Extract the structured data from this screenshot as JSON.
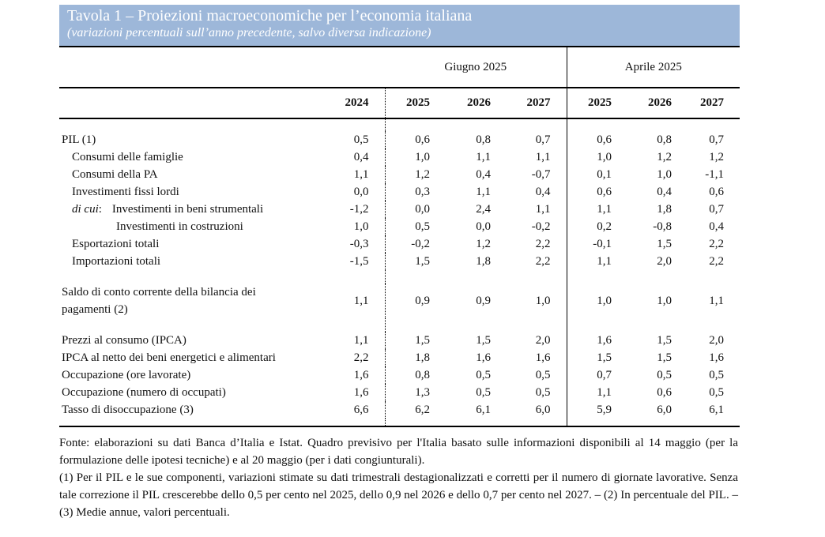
{
  "title": "Tavola 1 – Proiezioni macroeconomiche per l’economia italiana",
  "subtitle": "(variazioni percentuali sull’anno precedente, salvo diversa indicazione)",
  "groups": {
    "june": "Giugno 2025",
    "april": "Aprile 2025"
  },
  "years": [
    "2024",
    "2025",
    "2026",
    "2027",
    "2025",
    "2026",
    "2027"
  ],
  "rows": [
    {
      "label": "PIL (1)",
      "values": [
        "0,5",
        "0,6",
        "0,8",
        "0,7",
        "0,6",
        "0,8",
        "0,7"
      ]
    },
    {
      "label": "Consumi delle famiglie",
      "values": [
        "0,4",
        "1,0",
        "1,1",
        "1,1",
        "1,0",
        "1,2",
        "1,2"
      ]
    },
    {
      "label": "Consumi della PA",
      "values": [
        "1,1",
        "1,2",
        "0,4",
        "-0,7",
        "0,1",
        "1,0",
        "-1,1"
      ]
    },
    {
      "label": "Investimenti fissi lordi",
      "values": [
        "0,0",
        "0,3",
        "1,1",
        "0,4",
        "0,6",
        "0,4",
        "0,6"
      ]
    },
    {
      "prefix": "di cui",
      "label": "Investimenti in beni strumentali",
      "values": [
        "-1,2",
        "0,0",
        "2,4",
        "1,1",
        "1,1",
        "1,8",
        "0,7"
      ]
    },
    {
      "label": "Investimenti in costruzioni",
      "values": [
        "1,0",
        "0,5",
        "0,0",
        "-0,2",
        "0,2",
        "-0,8",
        "0,4"
      ]
    },
    {
      "label": "Esportazioni totali",
      "values": [
        "-0,3",
        "-0,2",
        "1,2",
        "2,2",
        "-0,1",
        "1,5",
        "2,2"
      ]
    },
    {
      "label": "Importazioni totali",
      "values": [
        "-1,5",
        "1,5",
        "1,8",
        "2,2",
        "1,1",
        "2,0",
        "2,2"
      ]
    },
    {
      "label_line1": "Saldo di conto corrente della bilancia dei",
      "label_line2": "pagamenti (2)",
      "values": [
        "1,1",
        "0,9",
        "0,9",
        "1,0",
        "1,0",
        "1,0",
        "1,1"
      ]
    },
    {
      "label": "Prezzi al consumo (IPCA)",
      "values": [
        "1,1",
        "1,5",
        "1,5",
        "2,0",
        "1,6",
        "1,5",
        "2,0"
      ]
    },
    {
      "label": "IPCA al netto dei beni energetici e alimentari",
      "values": [
        "2,2",
        "1,8",
        "1,6",
        "1,6",
        "1,5",
        "1,5",
        "1,6"
      ]
    },
    {
      "label": "Occupazione (ore lavorate)",
      "values": [
        "1,6",
        "0,8",
        "0,5",
        "0,5",
        "0,7",
        "0,5",
        "0,5"
      ]
    },
    {
      "label": "Occupazione (numero di occupati)",
      "values": [
        "1,6",
        "1,3",
        "0,5",
        "0,5",
        "1,1",
        "0,6",
        "0,5"
      ]
    },
    {
      "label": "Tasso di disoccupazione (3)",
      "values": [
        "6,6",
        "6,2",
        "6,1",
        "6,0",
        "5,9",
        "6,0",
        "6,1"
      ]
    }
  ],
  "notes": {
    "source": "Fonte: elaborazioni su dati Banca d’Italia e Istat. Quadro previsivo per l'Italia basato sulle informazioni disponibili al 14 maggio (per la formulazione delle ipotesi tecniche) e al 20 maggio (per i dati congiunturali).",
    "footnote": "(1) Per il PIL e le sue componenti, variazioni stimate su dati trimestrali destagionalizzati e corretti per il numero di giornate lavorative. Senza tale correzione il PIL crescerebbe dello 0,5 per cento nel 2025, dello 0,9 nel 2026 e dello 0,7 per cento nel 2027. – (2) In percentuale del PIL. – (3) Medie annue, valori percentuali."
  }
}
